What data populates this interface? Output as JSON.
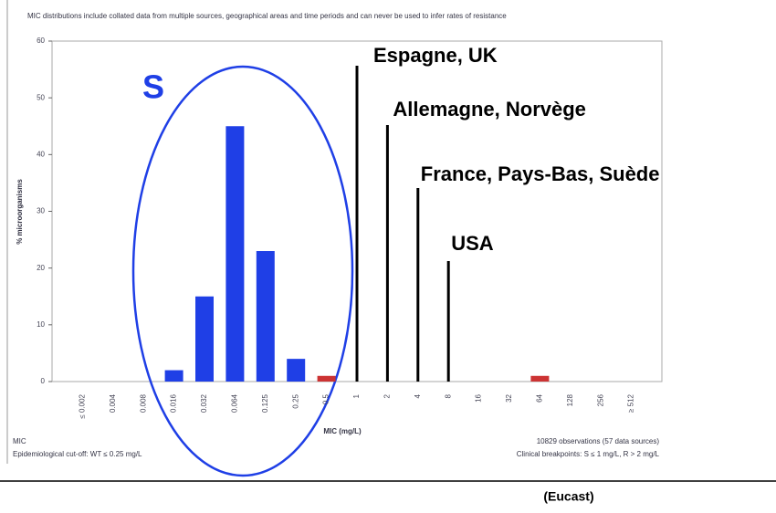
{
  "chart_data": {
    "type": "bar",
    "note": "MIC distributions include collated data from multiple sources, geographical areas and time periods and can never be used to infer rates of resistance",
    "ylabel": "% microorganisms",
    "xlabel": "MIC (mg/L)",
    "categories": [
      "≤ 0.002",
      "0.004",
      "0.008",
      "0.016",
      "0.032",
      "0.064",
      "0.125",
      "0.25",
      "0.5",
      "1",
      "2",
      "4",
      "8",
      "16",
      "32",
      "64",
      "128",
      "256",
      "≥ 512"
    ],
    "values": [
      0,
      0,
      0,
      2,
      15,
      45,
      23,
      4,
      1,
      0,
      0,
      0,
      0,
      0,
      0,
      1,
      0,
      0,
      0
    ],
    "colors": [
      "#1f3fe6",
      "#1f3fe6",
      "#1f3fe6",
      "#1f3fe6",
      "#1f3fe6",
      "#1f3fe6",
      "#1f3fe6",
      "#1f3fe6",
      "#cc3333",
      "#1f3fe6",
      "#1f3fe6",
      "#1f3fe6",
      "#1f3fe6",
      "#1f3fe6",
      "#1f3fe6",
      "#cc3333",
      "#1f3fe6",
      "#1f3fe6",
      "#1f3fe6"
    ],
    "ylim": [
      0,
      60
    ],
    "yticks": [
      0,
      10,
      20,
      30,
      40,
      50,
      60
    ],
    "footer_left": [
      "MIC",
      "Epidemiological cut-off: WT ≤ 0.25 mg/L"
    ],
    "footer_right": [
      "10829 observations (57 data sources)",
      "Clinical breakpoints: S ≤ 1 mg/L, R > 2 mg/L"
    ],
    "annotations": [
      {
        "text": "Espagne, UK",
        "x": "1"
      },
      {
        "text": "Allemagne, Norvège",
        "x": "2"
      },
      {
        "text": "France, Pays-Bas, Suède",
        "x": "4"
      },
      {
        "text": "USA",
        "x": "8"
      }
    ],
    "group_label": "S",
    "source": "(Eucast)"
  }
}
